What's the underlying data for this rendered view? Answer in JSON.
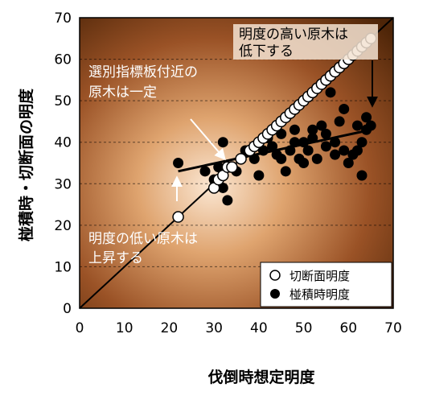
{
  "chart_data": {
    "type": "scatter",
    "xlabel": "伐倒時想定明度",
    "ylabel": "椪積時・切断面の明度",
    "xlim": [
      0,
      70
    ],
    "ylim": [
      0,
      70
    ],
    "xticks": [
      0,
      10,
      20,
      30,
      40,
      50,
      60,
      70
    ],
    "yticks": [
      0,
      10,
      20,
      30,
      40,
      50,
      60,
      70
    ],
    "grid": "horizontal dashed",
    "legend_position": "bottom-right",
    "series": [
      {
        "name": "切断面明度",
        "marker": "open-circle",
        "color": "#ffffff",
        "points": [
          [
            22,
            22
          ],
          [
            30,
            29
          ],
          [
            31,
            31
          ],
          [
            32,
            32
          ],
          [
            33,
            34
          ],
          [
            34,
            34
          ],
          [
            36,
            36
          ],
          [
            38,
            38
          ],
          [
            39,
            39
          ],
          [
            40,
            40
          ],
          [
            41,
            41
          ],
          [
            42,
            42
          ],
          [
            43,
            43
          ],
          [
            44,
            44
          ],
          [
            45,
            45
          ],
          [
            46,
            46
          ],
          [
            47,
            47
          ],
          [
            48,
            48
          ],
          [
            49,
            49
          ],
          [
            50,
            50
          ],
          [
            51,
            51
          ],
          [
            52,
            52
          ],
          [
            53,
            53
          ],
          [
            54,
            54
          ],
          [
            55,
            55
          ],
          [
            56,
            56
          ],
          [
            57,
            57
          ],
          [
            58,
            58
          ],
          [
            59,
            59
          ],
          [
            60,
            60
          ],
          [
            61,
            61
          ],
          [
            62,
            62
          ],
          [
            63,
            63
          ],
          [
            64,
            64
          ],
          [
            65,
            65
          ]
        ]
      },
      {
        "name": "椪積時明度",
        "marker": "filled-circle",
        "color": "#000000",
        "points": [
          [
            22,
            35
          ],
          [
            28,
            33
          ],
          [
            30,
            31
          ],
          [
            31,
            34
          ],
          [
            32,
            40
          ],
          [
            32,
            29
          ],
          [
            33,
            26
          ],
          [
            35,
            33
          ],
          [
            37,
            38
          ],
          [
            39,
            36
          ],
          [
            40,
            40
          ],
          [
            40,
            32
          ],
          [
            41,
            38
          ],
          [
            42,
            41
          ],
          [
            43,
            39
          ],
          [
            44,
            37
          ],
          [
            45,
            42
          ],
          [
            45,
            36
          ],
          [
            46,
            33
          ],
          [
            47,
            38
          ],
          [
            48,
            40
          ],
          [
            48,
            43
          ],
          [
            49,
            36
          ],
          [
            50,
            35
          ],
          [
            50,
            40
          ],
          [
            51,
            38
          ],
          [
            52,
            43
          ],
          [
            52,
            41
          ],
          [
            53,
            36
          ],
          [
            54,
            44
          ],
          [
            55,
            39
          ],
          [
            55,
            42
          ],
          [
            56,
            52
          ],
          [
            57,
            40
          ],
          [
            57,
            37
          ],
          [
            58,
            45
          ],
          [
            59,
            38
          ],
          [
            59,
            48
          ],
          [
            60,
            35
          ],
          [
            61,
            37
          ],
          [
            62,
            38
          ],
          [
            62,
            44
          ],
          [
            63,
            32
          ],
          [
            63,
            40
          ],
          [
            64,
            46
          ],
          [
            64,
            43
          ],
          [
            65,
            44
          ]
        ]
      }
    ],
    "reference_line": {
      "from": [
        0,
        0
      ],
      "to": [
        70,
        70
      ]
    },
    "trend_line": {
      "from": [
        22,
        33
      ],
      "to": [
        65,
        43
      ]
    },
    "annotations": [
      {
        "lines": [
          "明度の高い原木は",
          "低下する"
        ],
        "color": "#000000"
      },
      {
        "lines": [
          "選別指標板付近の",
          "原木は一定"
        ],
        "color": "#ffffff"
      },
      {
        "lines": [
          "明度の低い原木は",
          "上昇する"
        ],
        "color": "#ffffff"
      }
    ]
  }
}
